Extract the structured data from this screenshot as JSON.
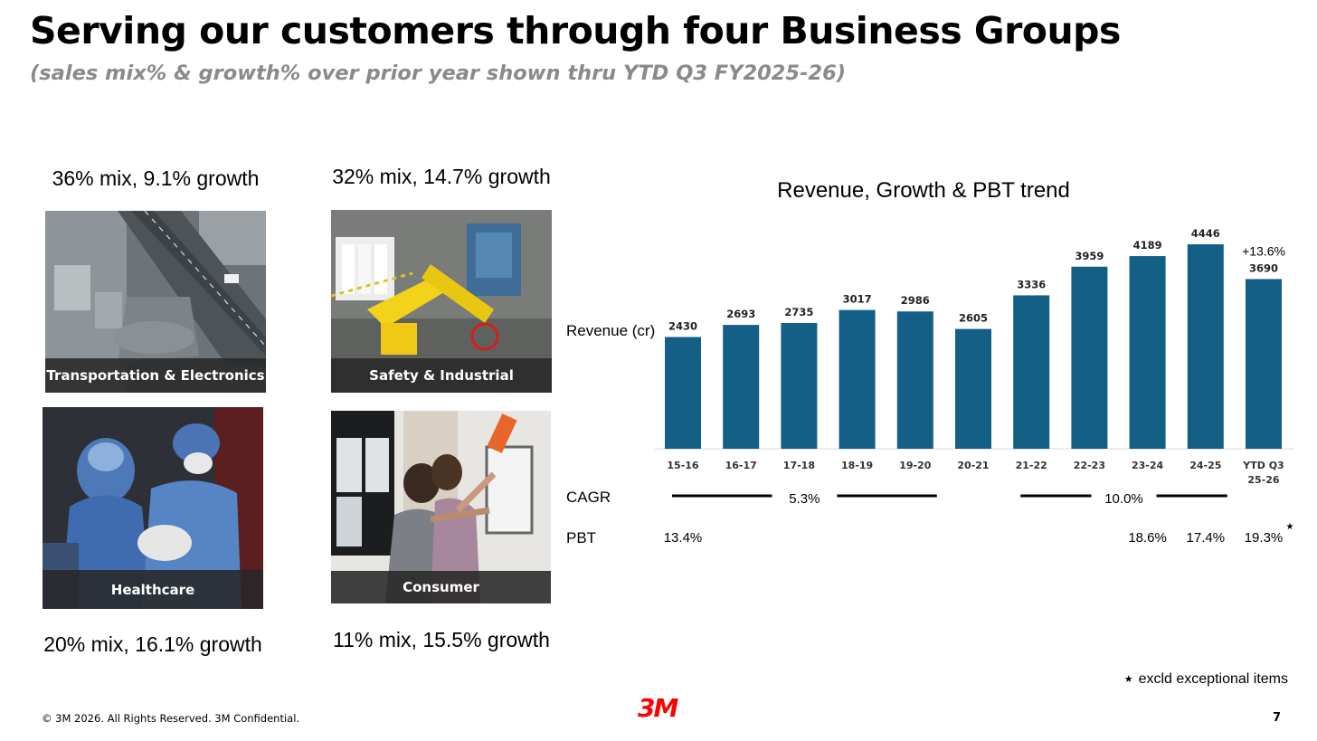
{
  "header": {
    "title": "Serving our customers through four Business Groups",
    "subtitle": "(sales mix% & growth% over prior year shown thru YTD Q3 FY2025-26)"
  },
  "business_groups": [
    {
      "name": "Transportation & Electronics",
      "caption": "36% mix, 9.1% growth",
      "image": "highway-interchange-photo"
    },
    {
      "name": "Safety & Industrial",
      "caption": "32% mix, 14.7% growth",
      "image": "industrial-robot-photo"
    },
    {
      "name": "Healthcare",
      "caption": "20% mix, 16.1% growth",
      "image": "surgeons-photo"
    },
    {
      "name": "Consumer",
      "caption": "11% mix, 15.5% growth",
      "image": "hanging-picture-photo"
    }
  ],
  "chart_data": {
    "type": "bar",
    "title": "Revenue, Growth & PBT trend",
    "ylabel": "Revenue (cr)",
    "categories": [
      "15-16",
      "16-17",
      "17-18",
      "18-19",
      "19-20",
      "20-21",
      "21-22",
      "22-23",
      "23-24",
      "24-25",
      "YTD Q3\n25-26"
    ],
    "values": [
      2430,
      2693,
      2735,
      3017,
      2986,
      2605,
      3336,
      3959,
      4189,
      4446,
      3690
    ],
    "ylim": [
      0,
      4446
    ],
    "bar_color": "#135f86",
    "growth_annotation": {
      "category": "YTD Q3\n25-26",
      "text": "+13.6%"
    },
    "cagr": {
      "label": "CAGR",
      "periods": [
        {
          "from": "15-16",
          "to": "19-20",
          "value": "5.3%"
        },
        {
          "from": "21-22",
          "to": "24-25",
          "value": "10.0%"
        }
      ]
    },
    "pbt": {
      "label": "PBT",
      "values": [
        {
          "category": "15-16",
          "value": "13.4%"
        },
        {
          "category": "23-24",
          "value": "18.6%"
        },
        {
          "category": "24-25",
          "value": "17.4%"
        },
        {
          "category": "YTD Q3\n25-26",
          "value": "19.3%",
          "starred": true
        }
      ]
    }
  },
  "footer": {
    "footnote": "excld exceptional items",
    "footnote_marker": "★",
    "copyright": "© 3M 2026. All Rights Reserved. 3M Confidential.",
    "logo_text": "3M",
    "logo_color": "#ff0000",
    "page_number": "7"
  }
}
